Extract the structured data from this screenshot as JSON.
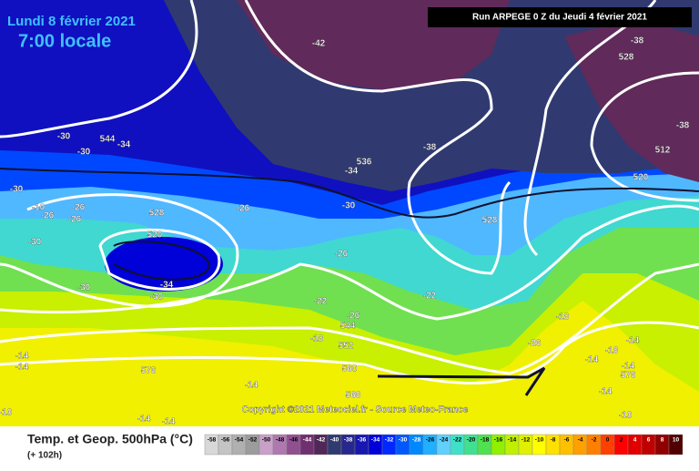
{
  "header": {
    "date": "Lundi 8 février 2021",
    "time": "7:00 locale",
    "run": "Run ARPEGE 0 Z du Jeudi 4 février 2021"
  },
  "map": {
    "contour_labels": [
      -42,
      -38,
      528,
      -38,
      512,
      520,
      -38,
      536,
      -34,
      544,
      -34,
      -30,
      -30,
      -30,
      -10,
      -26,
      -26,
      -26,
      528,
      -26,
      -30,
      528,
      -30,
      520,
      -26,
      -34,
      -30,
      -30,
      -22,
      -22,
      -26,
      544,
      -18,
      -18,
      552,
      -26,
      -14,
      -18,
      560,
      -14,
      -14,
      576,
      -14,
      -14,
      576,
      -14,
      568,
      -14,
      -10,
      -14,
      -14,
      -10
    ],
    "copyright": "Copyright ©2021 Meteociel.fr - Source Meteo-France"
  },
  "footer": {
    "title": "Temp. et Geop. 500hPa (°C)",
    "lead": "(+ 102h)"
  },
  "scale": {
    "values": [
      -58,
      -56,
      -54,
      -52,
      -50,
      -48,
      -46,
      -44,
      -42,
      -40,
      -38,
      -36,
      -34,
      -32,
      -30,
      -28,
      -26,
      -24,
      -22,
      -20,
      -18,
      -16,
      -14,
      -12,
      -10,
      -8,
      -6,
      -4,
      -2,
      0,
      2,
      4,
      6,
      8,
      10
    ],
    "colors": [
      "#d8d8d8",
      "#c4c4c4",
      "#b0b0b0",
      "#9c9c9c",
      "#c8a0c8",
      "#b078b0",
      "#905090",
      "#703070",
      "#502858",
      "#303a70",
      "#28288c",
      "#1818b0",
      "#0000d8",
      "#0028ff",
      "#0058ff",
      "#0088ff",
      "#20b0ff",
      "#60d0ff",
      "#40e0c8",
      "#40e090",
      "#50e050",
      "#90f000",
      "#c0f000",
      "#e0f000",
      "#ffff00",
      "#ffe000",
      "#ffc000",
      "#ffa000",
      "#ff8000",
      "#ff4000",
      "#ff0000",
      "#e00000",
      "#c00000",
      "#900000",
      "#500000"
    ]
  }
}
